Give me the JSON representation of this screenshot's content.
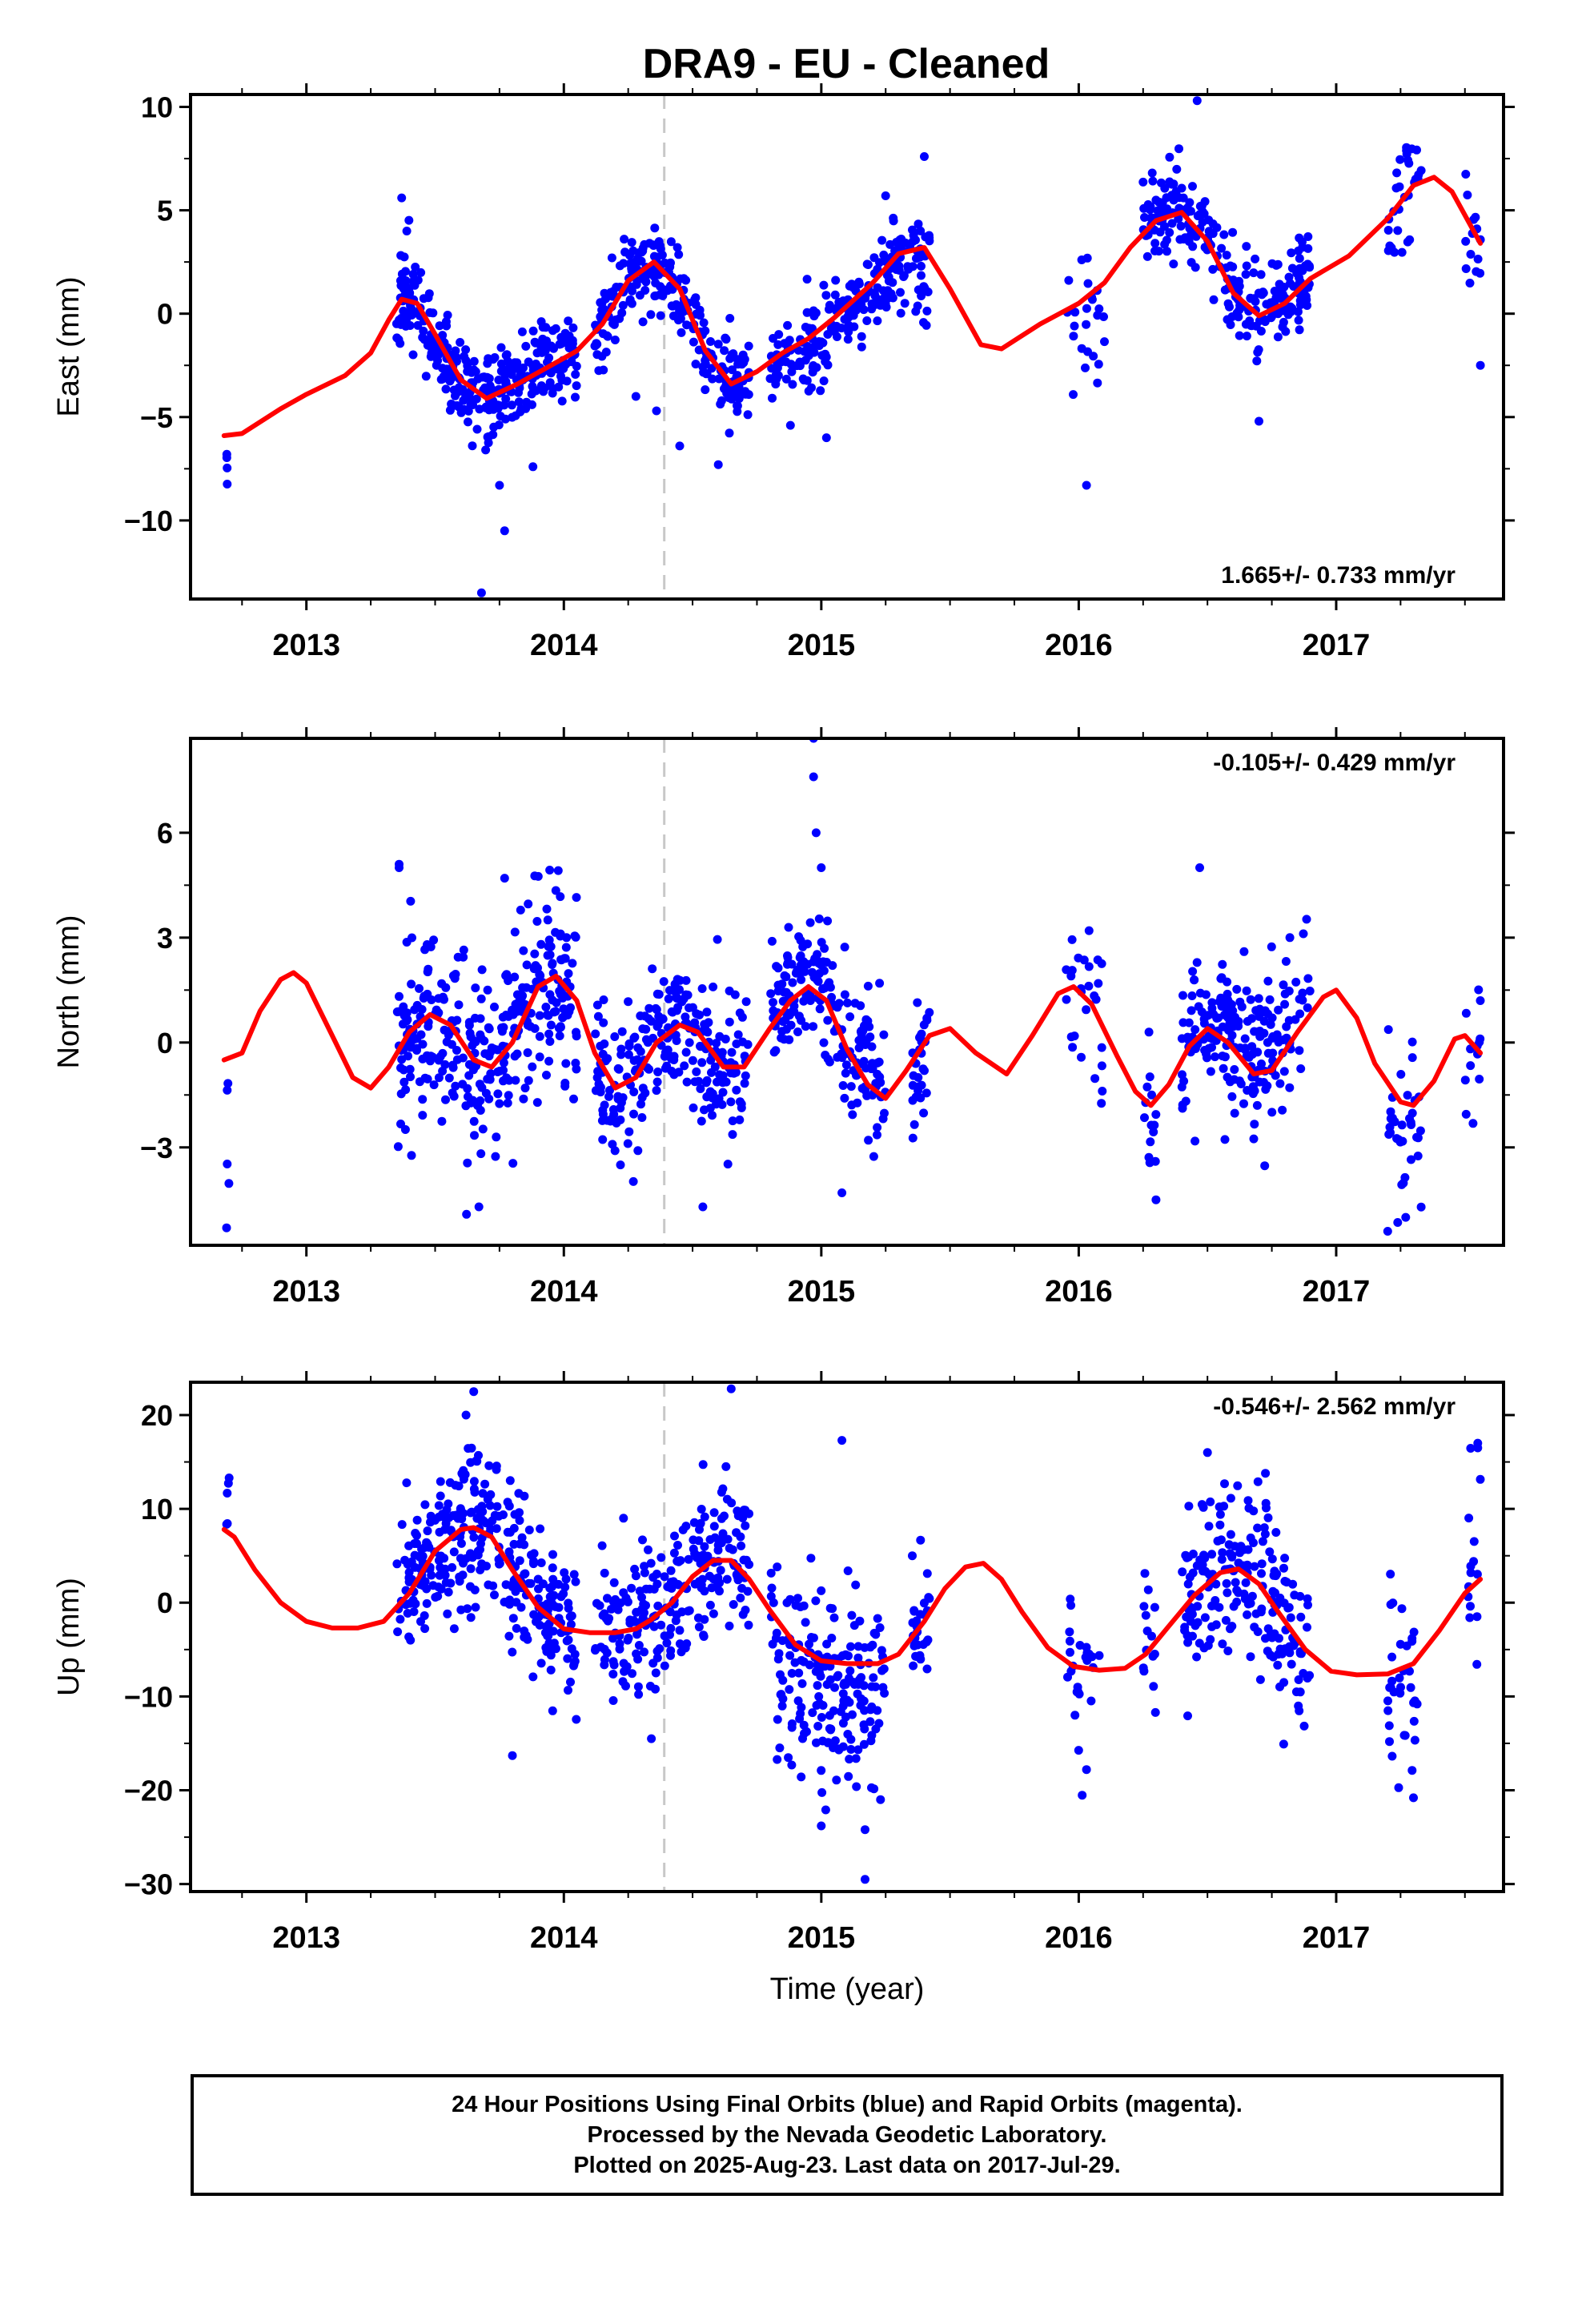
{
  "title": "DRA9  - EU - Cleaned",
  "colors": {
    "data": "#0000ff",
    "model": "#ff0000",
    "event_line": "#c8c8c8",
    "frame": "#000000"
  },
  "footer": {
    "lines": [
      "24 Hour Positions Using Final Orbits (blue) and Rapid Orbits (magenta).",
      "Processed by the Nevada Geodetic Laboratory.",
      "Plotted on 2025-Aug-23. Last data on 2017-Jul-29."
    ]
  },
  "chart_data": [
    {
      "type": "scatter",
      "name": "east",
      "ylabel": "East (mm)",
      "xlabel": "",
      "xlim": [
        2012.55,
        2017.65
      ],
      "ylim": [
        -13.8,
        10.6
      ],
      "yticks": [
        10,
        5,
        0,
        -5,
        -10
      ],
      "ytick_labels": [
        "10",
        "5",
        "0",
        "−5",
        "−10"
      ],
      "xticks": [
        2013,
        2014,
        2015,
        2016,
        2017
      ],
      "xtick_labels": [
        "2013",
        "2014",
        "2015",
        "2016",
        "2017"
      ],
      "rate_label": "1.665+/- 0.733 mm/yr",
      "rate_position": "bottom-right",
      "event_line_x": 2014.39,
      "seed": 11,
      "data_segments": [
        {
          "start": 2012.69,
          "end": 2012.7,
          "n": 4,
          "offset": -1.5,
          "sd": 0.9
        },
        {
          "start": 2013.35,
          "end": 2014.05,
          "n": 330,
          "offset": 0,
          "sd": 1.1
        },
        {
          "start": 2014.12,
          "end": 2014.72,
          "n": 240,
          "offset": 0,
          "sd": 1.1
        },
        {
          "start": 2014.8,
          "end": 2015.42,
          "n": 230,
          "offset": -0.5,
          "sd": 1.1
        },
        {
          "start": 2015.95,
          "end": 2016.1,
          "n": 24,
          "offset": -1.0,
          "sd": 1.6
        },
        {
          "start": 2016.25,
          "end": 2016.9,
          "n": 240,
          "offset": 0.3,
          "sd": 1.1
        },
        {
          "start": 2017.2,
          "end": 2017.33,
          "n": 30,
          "offset": 0.5,
          "sd": 1.2
        },
        {
          "start": 2017.5,
          "end": 2017.56,
          "n": 14,
          "offset": -0.8,
          "sd": 1.4
        }
      ],
      "extra_points": [
        {
          "x": 2013.68,
          "y": -13.5
        },
        {
          "x": 2013.77,
          "y": -10.5
        },
        {
          "x": 2013.75,
          "y": -8.3
        },
        {
          "x": 2016.46,
          "y": 10.3
        },
        {
          "x": 2016.03,
          "y": -8.3
        },
        {
          "x": 2015.4,
          "y": 7.6
        },
        {
          "x": 2014.28,
          "y": -4.0
        },
        {
          "x": 2014.36,
          "y": -4.7
        },
        {
          "x": 2014.6,
          "y": -7.3
        },
        {
          "x": 2014.45,
          "y": -6.4
        },
        {
          "x": 2015.02,
          "y": -6.0
        },
        {
          "x": 2014.88,
          "y": -5.4
        },
        {
          "x": 2016.7,
          "y": -5.2
        },
        {
          "x": 2017.56,
          "y": -2.5
        },
        {
          "x": 2013.88,
          "y": -7.4
        },
        {
          "x": 2013.37,
          "y": 5.6
        },
        {
          "x": 2015.25,
          "y": 5.7
        }
      ],
      "model": [
        [
          2012.68,
          -5.9
        ],
        [
          2012.75,
          -5.8
        ],
        [
          2012.9,
          -4.6
        ],
        [
          2013.0,
          -3.9
        ],
        [
          2013.15,
          -3.0
        ],
        [
          2013.25,
          -1.9
        ],
        [
          2013.32,
          -0.3
        ],
        [
          2013.37,
          0.7
        ],
        [
          2013.43,
          0.5
        ],
        [
          2013.5,
          -1.0
        ],
        [
          2013.6,
          -3.2
        ],
        [
          2013.7,
          -4.1
        ],
        [
          2013.82,
          -3.4
        ],
        [
          2013.95,
          -2.5
        ],
        [
          2014.05,
          -1.8
        ],
        [
          2014.15,
          -0.5
        ],
        [
          2014.25,
          1.6
        ],
        [
          2014.35,
          2.5
        ],
        [
          2014.45,
          1.2
        ],
        [
          2014.55,
          -1.8
        ],
        [
          2014.65,
          -3.4
        ],
        [
          2014.75,
          -2.8
        ],
        [
          2014.85,
          -1.9
        ],
        [
          2014.95,
          -1.2
        ],
        [
          2015.05,
          -0.2
        ],
        [
          2015.2,
          1.5
        ],
        [
          2015.3,
          2.9
        ],
        [
          2015.4,
          3.2
        ],
        [
          2015.5,
          1.2
        ],
        [
          2015.62,
          -1.5
        ],
        [
          2015.7,
          -1.7
        ],
        [
          2015.85,
          -0.5
        ],
        [
          2016.0,
          0.5
        ],
        [
          2016.1,
          1.5
        ],
        [
          2016.2,
          3.2
        ],
        [
          2016.3,
          4.5
        ],
        [
          2016.4,
          4.9
        ],
        [
          2016.5,
          3.5
        ],
        [
          2016.6,
          1.0
        ],
        [
          2016.7,
          -0.1
        ],
        [
          2016.8,
          0.5
        ],
        [
          2016.9,
          1.7
        ],
        [
          2017.05,
          2.8
        ],
        [
          2017.2,
          4.6
        ],
        [
          2017.3,
          6.2
        ],
        [
          2017.38,
          6.6
        ],
        [
          2017.45,
          5.9
        ],
        [
          2017.56,
          3.4
        ]
      ]
    },
    {
      "type": "scatter",
      "name": "north",
      "ylabel": "North (mm)",
      "xlabel": "",
      "xlim": [
        2012.55,
        2017.65
      ],
      "ylim": [
        -5.8,
        8.7
      ],
      "yticks": [
        6,
        3,
        0,
        -3
      ],
      "ytick_labels": [
        "6",
        "3",
        "0",
        "−3"
      ],
      "xticks": [
        2013,
        2014,
        2015,
        2016,
        2017
      ],
      "xtick_labels": [
        "2013",
        "2014",
        "2015",
        "2016",
        "2017"
      ],
      "rate_label": "-0.105+/- 0.429 mm/yr",
      "rate_position": "top-right",
      "event_line_x": 2014.39,
      "seed": 23,
      "data_segments": [
        {
          "start": 2012.69,
          "end": 2012.7,
          "n": 4,
          "offset": -1.2,
          "sd": 1.4
        },
        {
          "start": 2013.35,
          "end": 2014.05,
          "n": 330,
          "offset": 0,
          "sd": 1.3
        },
        {
          "start": 2014.12,
          "end": 2014.72,
          "n": 240,
          "offset": 0,
          "sd": 1.0
        },
        {
          "start": 2014.8,
          "end": 2015.25,
          "n": 190,
          "offset": 0.3,
          "sd": 1.1
        },
        {
          "start": 2015.35,
          "end": 2015.42,
          "n": 30,
          "offset": -0.3,
          "sd": 1.0
        },
        {
          "start": 2015.95,
          "end": 2016.1,
          "n": 26,
          "offset": 0,
          "sd": 1.1
        },
        {
          "start": 2016.25,
          "end": 2016.3,
          "n": 14,
          "offset": -0.5,
          "sd": 1.1
        },
        {
          "start": 2016.4,
          "end": 2016.9,
          "n": 200,
          "offset": 0.3,
          "sd": 1.0
        },
        {
          "start": 2017.2,
          "end": 2017.33,
          "n": 34,
          "offset": -0.8,
          "sd": 1.2
        },
        {
          "start": 2017.5,
          "end": 2017.56,
          "n": 14,
          "offset": 0,
          "sd": 1.2
        }
      ],
      "extra_points": [
        {
          "x": 2014.97,
          "y": 8.7
        },
        {
          "x": 2014.97,
          "y": 7.6
        },
        {
          "x": 2014.98,
          "y": 6.0
        },
        {
          "x": 2015.0,
          "y": 5.0
        },
        {
          "x": 2012.69,
          "y": -5.3
        },
        {
          "x": 2013.36,
          "y": 5.1
        },
        {
          "x": 2013.36,
          "y": 5.0
        },
        {
          "x": 2013.67,
          "y": -4.7
        },
        {
          "x": 2013.77,
          "y": 4.7
        },
        {
          "x": 2016.47,
          "y": 5.0
        },
        {
          "x": 2017.2,
          "y": -5.4
        },
        {
          "x": 2017.27,
          "y": -5.0
        },
        {
          "x": 2016.3,
          "y": -4.5
        },
        {
          "x": 2014.54,
          "y": -4.7
        },
        {
          "x": 2015.08,
          "y": -4.3
        },
        {
          "x": 2014.22,
          "y": -3.5
        },
        {
          "x": 2016.82,
          "y": 3.0
        },
        {
          "x": 2016.04,
          "y": 3.2
        }
      ],
      "model": [
        [
          2012.68,
          -0.5
        ],
        [
          2012.75,
          -0.3
        ],
        [
          2012.82,
          0.9
        ],
        [
          2012.9,
          1.8
        ],
        [
          2012.95,
          2.0
        ],
        [
          2013.0,
          1.7
        ],
        [
          2013.1,
          0.2
        ],
        [
          2013.18,
          -1.0
        ],
        [
          2013.25,
          -1.3
        ],
        [
          2013.32,
          -0.7
        ],
        [
          2013.4,
          0.3
        ],
        [
          2013.48,
          0.8
        ],
        [
          2013.56,
          0.5
        ],
        [
          2013.65,
          -0.5
        ],
        [
          2013.72,
          -0.7
        ],
        [
          2013.8,
          0.0
        ],
        [
          2013.9,
          1.6
        ],
        [
          2013.97,
          1.9
        ],
        [
          2014.05,
          1.2
        ],
        [
          2014.12,
          -0.3
        ],
        [
          2014.2,
          -1.3
        ],
        [
          2014.28,
          -1.0
        ],
        [
          2014.36,
          0.0
        ],
        [
          2014.45,
          0.5
        ],
        [
          2014.52,
          0.3
        ],
        [
          2014.62,
          -0.7
        ],
        [
          2014.7,
          -0.7
        ],
        [
          2014.8,
          0.4
        ],
        [
          2014.88,
          1.2
        ],
        [
          2014.95,
          1.6
        ],
        [
          2015.02,
          1.2
        ],
        [
          2015.1,
          -0.2
        ],
        [
          2015.18,
          -1.2
        ],
        [
          2015.25,
          -1.6
        ],
        [
          2015.33,
          -0.8
        ],
        [
          2015.42,
          0.2
        ],
        [
          2015.5,
          0.4
        ],
        [
          2015.6,
          -0.3
        ],
        [
          2015.72,
          -0.9
        ],
        [
          2015.82,
          0.2
        ],
        [
          2015.92,
          1.4
        ],
        [
          2015.98,
          1.6
        ],
        [
          2016.05,
          1.1
        ],
        [
          2016.15,
          -0.4
        ],
        [
          2016.22,
          -1.4
        ],
        [
          2016.28,
          -1.8
        ],
        [
          2016.35,
          -1.2
        ],
        [
          2016.43,
          -0.1
        ],
        [
          2016.5,
          0.4
        ],
        [
          2016.58,
          0.0
        ],
        [
          2016.68,
          -0.9
        ],
        [
          2016.75,
          -0.8
        ],
        [
          2016.85,
          0.3
        ],
        [
          2016.95,
          1.3
        ],
        [
          2017.0,
          1.5
        ],
        [
          2017.08,
          0.7
        ],
        [
          2017.15,
          -0.6
        ],
        [
          2017.25,
          -1.7
        ],
        [
          2017.3,
          -1.8
        ],
        [
          2017.38,
          -1.1
        ],
        [
          2017.46,
          0.1
        ],
        [
          2017.5,
          0.2
        ],
        [
          2017.56,
          -0.3
        ]
      ]
    },
    {
      "type": "scatter",
      "name": "up",
      "ylabel": "Up (mm)",
      "xlabel": "Time (year)",
      "xlim": [
        2012.55,
        2017.65
      ],
      "ylim": [
        -30.8,
        23.5
      ],
      "yticks": [
        20,
        10,
        0,
        -10,
        -20,
        -30
      ],
      "ytick_labels": [
        "20",
        "10",
        "0",
        "−10",
        "−20",
        "−30"
      ],
      "xticks": [
        2013,
        2014,
        2015,
        2016,
        2017
      ],
      "xtick_labels": [
        "2013",
        "2014",
        "2015",
        "2016",
        "2017"
      ],
      "rate_label": "-0.546+/- 2.562 mm/yr",
      "rate_position": "top-right",
      "event_line_x": 2014.39,
      "seed": 37,
      "data_segments": [
        {
          "start": 2012.69,
          "end": 2012.7,
          "n": 4,
          "offset": 2.5,
          "sd": 3.0
        },
        {
          "start": 2013.35,
          "end": 2014.05,
          "n": 330,
          "offset": 0,
          "sd": 4.0
        },
        {
          "start": 2014.12,
          "end": 2014.72,
          "n": 240,
          "offset": 0.5,
          "sd": 3.8
        },
        {
          "start": 2014.8,
          "end": 2015.25,
          "n": 190,
          "offset": -3.0,
          "sd": 5.0
        },
        {
          "start": 2015.35,
          "end": 2015.42,
          "n": 30,
          "offset": 0,
          "sd": 4.0
        },
        {
          "start": 2015.95,
          "end": 2016.1,
          "n": 26,
          "offset": 0,
          "sd": 6.0
        },
        {
          "start": 2016.25,
          "end": 2016.3,
          "n": 14,
          "offset": 0,
          "sd": 5.0
        },
        {
          "start": 2016.4,
          "end": 2016.9,
          "n": 200,
          "offset": 0,
          "sd": 4.5
        },
        {
          "start": 2017.2,
          "end": 2017.33,
          "n": 34,
          "offset": -1.0,
          "sd": 4.5
        },
        {
          "start": 2017.5,
          "end": 2017.56,
          "n": 14,
          "offset": 3.0,
          "sd": 5.0
        }
      ],
      "extra_points": [
        {
          "x": 2013.65,
          "y": 22.5
        },
        {
          "x": 2014.65,
          "y": 22.8
        },
        {
          "x": 2015.17,
          "y": -29.5
        },
        {
          "x": 2015.0,
          "y": -23.8
        },
        {
          "x": 2015.17,
          "y": -24.2
        },
        {
          "x": 2015.08,
          "y": 17.3
        },
        {
          "x": 2013.8,
          "y": -16.3
        },
        {
          "x": 2016.03,
          "y": -17.8
        },
        {
          "x": 2017.3,
          "y": -20.8
        },
        {
          "x": 2017.55,
          "y": 17.0
        },
        {
          "x": 2017.55,
          "y": 16.5
        },
        {
          "x": 2012.7,
          "y": 13.3
        },
        {
          "x": 2014.34,
          "y": -14.5
        },
        {
          "x": 2013.62,
          "y": 20.0
        },
        {
          "x": 2016.5,
          "y": 16.0
        },
        {
          "x": 2015.23,
          "y": -21.0
        }
      ],
      "model": [
        [
          2012.68,
          7.8
        ],
        [
          2012.72,
          7.0
        ],
        [
          2012.8,
          3.5
        ],
        [
          2012.9,
          0.0
        ],
        [
          2013.0,
          -2.0
        ],
        [
          2013.1,
          -2.7
        ],
        [
          2013.2,
          -2.7
        ],
        [
          2013.3,
          -2.0
        ],
        [
          2013.4,
          1.0
        ],
        [
          2013.5,
          5.5
        ],
        [
          2013.6,
          7.8
        ],
        [
          2013.65,
          8.0
        ],
        [
          2013.72,
          7.0
        ],
        [
          2013.8,
          3.5
        ],
        [
          2013.9,
          -0.5
        ],
        [
          2014.0,
          -2.8
        ],
        [
          2014.1,
          -3.2
        ],
        [
          2014.2,
          -3.2
        ],
        [
          2014.28,
          -2.8
        ],
        [
          2014.34,
          -1.8
        ],
        [
          2014.42,
          0.0
        ],
        [
          2014.5,
          2.8
        ],
        [
          2014.58,
          4.5
        ],
        [
          2014.65,
          4.5
        ],
        [
          2014.72,
          2.5
        ],
        [
          2014.8,
          -0.8
        ],
        [
          2014.9,
          -4.5
        ],
        [
          2015.0,
          -6.2
        ],
        [
          2015.1,
          -6.5
        ],
        [
          2015.22,
          -6.5
        ],
        [
          2015.3,
          -5.5
        ],
        [
          2015.4,
          -2.0
        ],
        [
          2015.48,
          1.5
        ],
        [
          2015.56,
          3.8
        ],
        [
          2015.63,
          4.2
        ],
        [
          2015.7,
          2.5
        ],
        [
          2015.78,
          -1.0
        ],
        [
          2015.88,
          -4.8
        ],
        [
          2015.98,
          -6.8
        ],
        [
          2016.08,
          -7.2
        ],
        [
          2016.18,
          -7.0
        ],
        [
          2016.26,
          -5.5
        ],
        [
          2016.35,
          -2.5
        ],
        [
          2016.45,
          0.8
        ],
        [
          2016.55,
          3.2
        ],
        [
          2016.62,
          3.6
        ],
        [
          2016.7,
          2.0
        ],
        [
          2016.78,
          -1.2
        ],
        [
          2016.88,
          -5.0
        ],
        [
          2016.98,
          -7.3
        ],
        [
          2017.08,
          -7.7
        ],
        [
          2017.2,
          -7.6
        ],
        [
          2017.3,
          -6.5
        ],
        [
          2017.4,
          -3.0
        ],
        [
          2017.5,
          1.0
        ],
        [
          2017.56,
          2.5
        ]
      ]
    }
  ]
}
